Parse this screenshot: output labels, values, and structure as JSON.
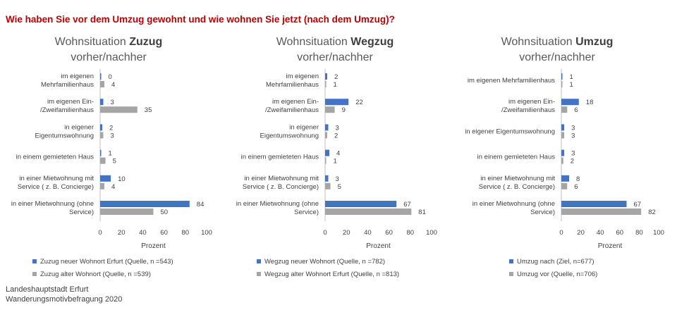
{
  "title": "Wie haben Sie vor dem Umzug gewohnt und wie wohnen Sie jetzt (nach dem Umzug)?",
  "source_line1": "Landeshauptstadt Erfurt",
  "source_line2": "Wanderungsmotivbefragung 2020",
  "colors": {
    "blue": "#4472c4",
    "gray": "#a5a5a5"
  },
  "chart_data": [
    {
      "type": "bar",
      "title_prefix": "Wohnsituation ",
      "title_bold": "Zuzug",
      "subtitle": "vorher/nachher",
      "categories": [
        [
          "im eigenen",
          "Mehrfamilienhaus"
        ],
        [
          "im eigenen Ein-",
          "/Zweifamilienhaus"
        ],
        [
          "in eigener",
          "Eigentumswohnung"
        ],
        [
          "in einem gemieteten Haus"
        ],
        [
          "in einer Mietwohnung mit",
          "Service ( z. B. Concierge)"
        ],
        [
          "in einer Mietwohnung (ohne",
          "Service)"
        ]
      ],
      "series": [
        {
          "name": "Zuzug neuer Wohnort Erfurt (Quelle, n =543)",
          "values": [
            0,
            3,
            2,
            1,
            10,
            84
          ]
        },
        {
          "name": "Zuzug alter Wohnort (Quelle, n =539)",
          "values": [
            4,
            35,
            3,
            5,
            4,
            50
          ]
        }
      ],
      "xlabel": "Prozent",
      "xlim": [
        0,
        100
      ],
      "xticks": [
        0,
        20,
        40,
        60,
        80,
        100
      ]
    },
    {
      "type": "bar",
      "title_prefix": "Wohnsituation ",
      "title_bold": "Wegzug",
      "subtitle": "vorher/nachher",
      "categories": [
        [
          "im eigenen",
          "Mehrfamilienhaus"
        ],
        [
          "im eigenen Ein-",
          "/Zweifamilienhaus"
        ],
        [
          "in eigener",
          "Eigentumswohnung"
        ],
        [
          "in einem gemieteten Haus"
        ],
        [
          "in einer Mietwohnung mit",
          "Service ( z. B. Concierge)"
        ],
        [
          "in einer Mietwohnung (ohne",
          "Service)"
        ]
      ],
      "series": [
        {
          "name": "Wegzug neuer Wohnort (Quelle, n =782)",
          "values": [
            2,
            22,
            3,
            4,
            3,
            67
          ]
        },
        {
          "name": "Wegzug alter Wohnort Erfurt (Quelle, n =813)",
          "values": [
            1,
            9,
            2,
            1,
            5,
            81
          ]
        }
      ],
      "xlabel": "Prozent",
      "xlim": [
        0,
        100
      ],
      "xticks": [
        0,
        20,
        40,
        60,
        80,
        100
      ]
    },
    {
      "type": "bar",
      "title_prefix": "Wohnsituation ",
      "title_bold": "Umzug",
      "subtitle": "vorher/nachher",
      "categories": [
        [
          "im eigenen Mehrfamilienhaus"
        ],
        [
          "im eigenen Ein-",
          "/Zweifamilienhaus"
        ],
        [
          "in eigener Eigentumswohnung"
        ],
        [
          "in einem gemieteten Haus"
        ],
        [
          "in einer Mietwohnung mit",
          "Service ( z. B. Concierge)"
        ],
        [
          "in einer Mietwohnung (ohne",
          "Service)"
        ]
      ],
      "series": [
        {
          "name": "Umzug nach (Ziel, n=677)",
          "values": [
            1,
            18,
            3,
            3,
            8,
            67
          ]
        },
        {
          "name": "Umzug vor (Quelle, n=706)",
          "values": [
            1,
            6,
            3,
            2,
            6,
            82
          ]
        }
      ],
      "xlabel": "Prozent",
      "xlim": [
        0,
        100
      ],
      "xticks": [
        0,
        20,
        40,
        60,
        80,
        100
      ]
    }
  ]
}
